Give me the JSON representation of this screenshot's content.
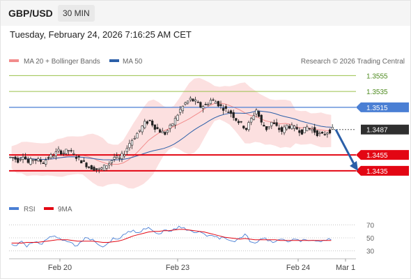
{
  "header": {
    "symbol": "GBP/USD",
    "timeframe": "30 MIN"
  },
  "timestamp": "Tuesday, February 24, 2026 7:16:25 AM CET",
  "copyright": "Research © 2026 Trading Central",
  "colors": {
    "resistance": "#4a7fd4",
    "support": "#e30613",
    "target_green": "#9ac14a",
    "arrow": "#2b5fa8",
    "bollinger": "#fbd6d6",
    "ma20": "#f28c8c",
    "ma50": "#2b5fa8",
    "candle": "#222222",
    "rsi": "#4a7fd4",
    "rsi_ma": "#e30613"
  },
  "chart_data": [
    {
      "type": "candlestick",
      "legend": [
        {
          "name": "MA 20 + Bollinger Bands"
        },
        {
          "name": "MA 50"
        }
      ],
      "x_ticks": [
        "Feb 20",
        "Feb 23",
        "Feb 24",
        "Mar 1"
      ],
      "y_range": [
        1.3405,
        1.3565
      ],
      "levels": [
        {
          "value": 1.3555,
          "label": "1.3555",
          "kind": "target"
        },
        {
          "value": 1.3535,
          "label": "1.3535",
          "kind": "target"
        },
        {
          "value": 1.3515,
          "label": "1.3515",
          "kind": "resistance"
        },
        {
          "value": 1.3487,
          "label": "1.3487",
          "kind": "current"
        },
        {
          "value": 1.3455,
          "label": "1.3455",
          "kind": "support"
        },
        {
          "value": 1.3435,
          "label": "1.3435",
          "kind": "support"
        }
      ],
      "forecast": {
        "from": 1.3487,
        "to": 1.3435,
        "direction": "down"
      },
      "price_path": [
        1.3452,
        1.3448,
        1.3455,
        1.3445,
        1.345,
        1.3448,
        1.3446,
        1.3452,
        1.3455,
        1.346,
        1.3458,
        1.3461,
        1.3455,
        1.345,
        1.3445,
        1.344,
        1.3438,
        1.3436,
        1.344,
        1.3445,
        1.3452,
        1.345,
        1.3458,
        1.347,
        1.3478,
        1.3486,
        1.3495,
        1.3498,
        1.349,
        1.3485,
        1.3482,
        1.349,
        1.35,
        1.3512,
        1.352,
        1.3525,
        1.3522,
        1.3516,
        1.3518,
        1.3524,
        1.3522,
        1.3516,
        1.3512,
        1.3508,
        1.35,
        1.3494,
        1.3488,
        1.35,
        1.3512,
        1.3495,
        1.3488,
        1.3496,
        1.349,
        1.3485,
        1.3492,
        1.349,
        1.3488,
        1.3484,
        1.349,
        1.3487,
        1.3482,
        1.348,
        1.3484,
        1.3487
      ]
    },
    {
      "type": "line",
      "legend": [
        {
          "name": "RSI"
        },
        {
          "name": "9MA"
        }
      ],
      "y_ticks": [
        70,
        50,
        30
      ],
      "y_range": [
        20,
        80
      ],
      "series": [
        {
          "name": "RSI",
          "values": [
            40,
            38,
            45,
            36,
            42,
            44,
            40,
            48,
            52,
            50,
            46,
            44,
            42,
            38,
            45,
            50,
            48,
            40,
            36,
            42,
            50,
            48,
            55,
            60,
            62,
            58,
            64,
            66,
            60,
            56,
            62,
            60,
            64,
            68,
            66,
            62,
            58,
            60,
            56,
            54,
            52,
            48,
            50,
            46,
            44,
            50,
            56,
            44,
            42,
            48,
            50,
            46,
            44,
            48,
            46,
            45,
            48,
            44,
            47,
            46,
            45,
            44,
            46,
            47
          ]
        },
        {
          "name": "9MA",
          "values": [
            42,
            42,
            42,
            43,
            43,
            43,
            44,
            45,
            46,
            47,
            47,
            47,
            46,
            45,
            45,
            45,
            45,
            44,
            43,
            43,
            44,
            45,
            47,
            50,
            53,
            55,
            57,
            59,
            60,
            60,
            61,
            61,
            62,
            63,
            63,
            62,
            61,
            60,
            59,
            57,
            55,
            53,
            51,
            50,
            49,
            48,
            49,
            48,
            47,
            47,
            47,
            47,
            47,
            46,
            46,
            46,
            46,
            46,
            46,
            46,
            46,
            46,
            46,
            46
          ]
        }
      ]
    }
  ]
}
